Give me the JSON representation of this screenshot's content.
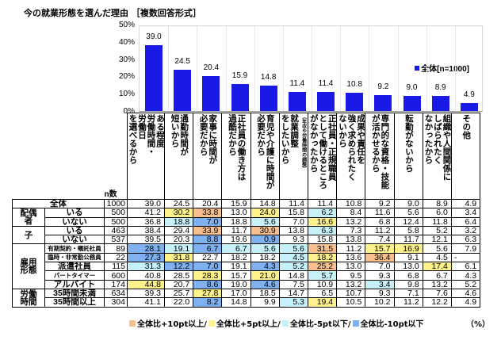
{
  "title": "今の就業形態を選んだ理由 ［複数回答形式］",
  "chart_data": {
    "type": "bar",
    "title": "今の就業形態を選んだ理由 ［複数回答形式］",
    "xlabel": "",
    "ylabel": "",
    "ylim": [
      0,
      50
    ],
    "yticks": [
      "50%",
      "40%",
      "30%",
      "20%",
      "10%",
      "0%"
    ],
    "grid": true,
    "legend": {
      "position": "top-right",
      "entries": [
        "全体[n=1000]"
      ]
    },
    "categories": [
      "ある程度労働時間・労働日を選べるから",
      "通勤時間が短いから",
      "家事に時間が必要だから",
      "正社員の働き方は過酷だから",
      "育児や介護に時間が必要だから",
      "就業調整（年収や労働時間の調整）をしたいから",
      "正社員・正規職員として働けるところがなかったから",
      "成果や責任を強く求められたくないから",
      "専門的な資格・技能が活かせるから",
      "転勤がないから",
      "組織や人間関係に しばられたくなかったから",
      "その他"
    ],
    "series": [
      {
        "name": "全体[n=1000]",
        "color": "#1a1ae6",
        "values": [
          39.0,
          24.5,
          20.4,
          15.9,
          14.8,
          11.4,
          11.4,
          10.8,
          9.2,
          9.0,
          8.9,
          4.9
        ]
      }
    ]
  },
  "y_ticks": [
    "50%",
    "40%",
    "30%",
    "20%",
    "10%",
    "0%"
  ],
  "legend_label": "全体[n=1000]",
  "bar_labels": [
    "39.0",
    "24.5",
    "20.4",
    "15.9",
    "14.8",
    "11.4",
    "11.4",
    "10.8",
    "9.2",
    "9.0",
    "8.9",
    "4.9"
  ],
  "table": {
    "n_header": "n数",
    "columns": [
      {
        "lines": [
          "ある程度",
          "労働時間・労働日",
          "を選べるから"
        ],
        "text": "ある程度労働時間・労働日を選べるから"
      },
      {
        "text": "通勤時間が短いから"
      },
      {
        "text": "家事に時間が必要だから"
      },
      {
        "text": "正社員の働き方は過酷だから"
      },
      {
        "text": "育児や介護に時間が必要だから"
      },
      {
        "text": "就業調整をしたいから",
        "note": "（年収や労働時間の調整）"
      },
      {
        "text": "正社員・正規職員として働けるところがなかったから"
      },
      {
        "text": "成果や責任を強く求められたくないから"
      },
      {
        "text": "専門的な資格・技能が活かせるから"
      },
      {
        "text": "転勤がないから"
      },
      {
        "text": "組織や人間関係にしばられたくなかったから"
      },
      {
        "text": "その他"
      }
    ],
    "col_headers_vertical": [
      "ある程度\n労働時間・\n労働日\nを選べるから",
      "通勤時間が\n短いから",
      "家事に時間が\n必要だから",
      "正社員の働き方は\n過酷だから",
      "育児や介護に時間が\n必要だから",
      "就業調整\nをしたいから",
      "正社員・正規職員\nとして働けるところ\nがなかったから",
      "成果や責任を\n強く求められたく\nないから",
      "専門的な資格・技能\nが活かせるから",
      "転勤がないから",
      "組織や人間関係に\nしばられたく\nなかったから",
      "その他"
    ],
    "rows": [
      {
        "group": "",
        "label": "全体",
        "n": "1000",
        "values": [
          "39.0",
          "24.5",
          "20.4",
          "15.9",
          "14.8",
          "11.4",
          "11.4",
          "10.8",
          "9.2",
          "9.0",
          "8.9",
          "4.9"
        ],
        "colors": [
          "",
          "",
          "",
          "",
          "",
          "",
          "",
          "",
          "",
          "",
          "",
          ""
        ]
      },
      {
        "group": "配偶者",
        "label": "いる",
        "n": "500",
        "values": [
          "41.2",
          "30.2",
          "33.8",
          "13.0",
          "24.0",
          "15.8",
          "6.2",
          "8.4",
          "11.6",
          "5.6",
          "6.0",
          "3.4"
        ],
        "colors": [
          "",
          "p5",
          "p10",
          "",
          "p5",
          "",
          "m5",
          "",
          "",
          "",
          "",
          ""
        ]
      },
      {
        "group": "配偶者",
        "label": "いない",
        "n": "500",
        "values": [
          "36.8",
          "18.8",
          "7.0",
          "18.8",
          "5.6",
          "7.0",
          "16.6",
          "13.2",
          "6.8",
          "12.4",
          "11.8",
          "6.4"
        ],
        "colors": [
          "",
          "m5",
          "m10",
          "",
          "m5",
          "",
          "p5",
          "",
          "",
          "",
          "",
          ""
        ]
      },
      {
        "group": "子",
        "label": "いる",
        "n": "463",
        "values": [
          "38.4",
          "29.4",
          "33.9",
          "11.7",
          "30.9",
          "13.8",
          "6.3",
          "7.3",
          "11.2",
          "5.8",
          "5.2",
          "3.2"
        ],
        "colors": [
          "",
          "",
          "p10",
          "",
          "p10",
          "",
          "m5",
          "",
          "",
          "",
          "",
          ""
        ]
      },
      {
        "group": "子",
        "label": "いない",
        "n": "537",
        "values": [
          "39.5",
          "20.3",
          "8.8",
          "19.6",
          "0.9",
          "9.3",
          "15.8",
          "13.8",
          "7.4",
          "11.7",
          "12.1",
          "6.3"
        ],
        "colors": [
          "",
          "",
          "m10",
          "",
          "m10",
          "",
          "",
          "",
          "",
          "",
          "",
          ""
        ]
      },
      {
        "group": "雇用形態",
        "label": "有期契約・嘱託社員",
        "n": "89",
        "values": [
          "28.1",
          "19.1",
          "6.7",
          "6.7",
          "5.6",
          "5.6",
          "31.5",
          "11.2",
          "15.7",
          "16.9",
          "5.6",
          "7.9"
        ],
        "colors": [
          "m10",
          "m5",
          "m10",
          "m5",
          "m5",
          "m5",
          "p10",
          "",
          "p5",
          "p5",
          "",
          ""
        ]
      },
      {
        "group": "雇用形態",
        "label": "臨時・非常勤公務員",
        "n": "22",
        "values": [
          "27.3",
          "31.8",
          "22.7",
          "18.2",
          "18.2",
          "4.5",
          "18.2",
          "13.6",
          "36.4",
          "9.1",
          "4.5",
          "-"
        ],
        "colors": [
          "m10",
          "p5",
          "",
          "",
          "",
          "m5",
          "p5",
          "",
          "p10",
          "",
          "",
          ""
        ]
      },
      {
        "group": "雇用形態",
        "label": "派遣社員",
        "n": "115",
        "values": [
          "31.3",
          "12.2",
          "7.0",
          "19.1",
          "4.3",
          "5.2",
          "25.2",
          "13.0",
          "7.0",
          "13.0",
          "17.4",
          "6.1"
        ],
        "colors": [
          "m5",
          "m10",
          "m10",
          "",
          "m10",
          "m5",
          "p10",
          "",
          "",
          "",
          "p5",
          ""
        ]
      },
      {
        "group": "雇用形態",
        "label": "パートタイマー",
        "n": "600",
        "values": [
          "40.8",
          "28.5",
          "28.3",
          "15.7",
          "21.0",
          "14.8",
          "5.7",
          "9.5",
          "9.3",
          "6.8",
          "6.7",
          "4.3"
        ],
        "colors": [
          "",
          "",
          "p5",
          "",
          "p5",
          "",
          "m5",
          "",
          "",
          "",
          "",
          ""
        ]
      },
      {
        "group": "雇用形態",
        "label": "アルバイト",
        "n": "174",
        "values": [
          "44.8",
          "20.7",
          "8.6",
          "19.0",
          "4.6",
          "7.5",
          "10.9",
          "13.2",
          "3.4",
          "9.8",
          "13.2",
          "5.2"
        ],
        "colors": [
          "p5",
          "",
          "m10",
          "",
          "m10",
          "",
          "",
          "",
          "m5",
          "",
          "",
          ""
        ]
      },
      {
        "group": "労働時間",
        "label": "35時間未満",
        "n": "634",
        "values": [
          "39.3",
          "25.7",
          "27.8",
          "17.0",
          "18.5",
          "14.7",
          "6.5",
          "10.7",
          "9.3",
          "7.1",
          "7.6",
          "4.6"
        ],
        "colors": [
          "",
          "",
          "p5",
          "",
          "",
          "",
          "",
          "",
          "",
          "",
          "",
          ""
        ]
      },
      {
        "group": "労働時間",
        "label": "35時間以上",
        "n": "304",
        "values": [
          "41.1",
          "22.0",
          "8.2",
          "14.8",
          "9.9",
          "5.3",
          "19.4",
          "10.5",
          "10.2",
          "11.2",
          "12.2",
          "4.9"
        ],
        "colors": [
          "",
          "",
          "m10",
          "",
          "",
          "m5",
          "p5",
          "",
          "",
          "",
          "",
          ""
        ]
      }
    ],
    "groups": [
      {
        "label": "配偶者",
        "lines": [
          "配偶",
          "者"
        ],
        "rowspan": 2
      },
      {
        "label": "子",
        "lines": [
          "子"
        ],
        "rowspan": 2
      },
      {
        "label": "雇用形態",
        "lines": [
          "雇用",
          "形態"
        ],
        "rowspan": 5
      },
      {
        "label": "労働時間",
        "lines": [
          "労働",
          "時間"
        ],
        "rowspan": 2
      }
    ]
  },
  "color_legend": [
    {
      "key": "p10",
      "label": "全体比+10pt以上",
      "color": "#f9c08f"
    },
    {
      "key": "p5",
      "label": "全体比+5pt以上",
      "color": "#fdf28b"
    },
    {
      "key": "m5",
      "label": "全体比-5pt以下",
      "color": "#c7f1f9"
    },
    {
      "key": "m10",
      "label": "全体比-10pt以下",
      "color": "#7fb0f0"
    }
  ],
  "legend_separator": "/",
  "unit": "（%）"
}
